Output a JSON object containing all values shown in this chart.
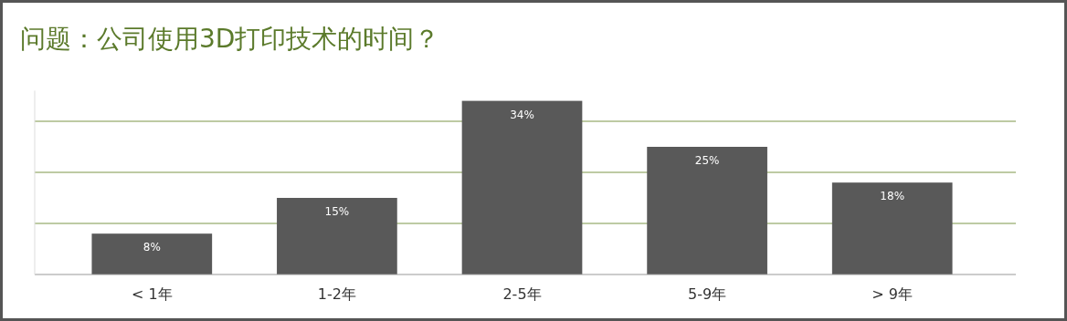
{
  "chart_data": {
    "type": "bar",
    "title": "问题：公司使用3D打印技术的时间？",
    "categories": [
      "< 1年",
      "1-2年",
      "2-5年",
      "5-9年",
      "> 9年"
    ],
    "values": [
      8,
      15,
      34,
      25,
      18
    ],
    "color": "#595959",
    "value_labels": [
      "8%",
      "15%",
      "34%",
      "25%",
      "18%"
    ],
    "ylim": [
      0,
      36
    ],
    "yticks": [
      {
        "value": 0,
        "label": null
      },
      {
        "value": 10,
        "label": null
      },
      {
        "value": 20,
        "label": null
      },
      {
        "value": 30,
        "label": null
      }
    ],
    "grid": "y",
    "tick_labels": "x"
  }
}
